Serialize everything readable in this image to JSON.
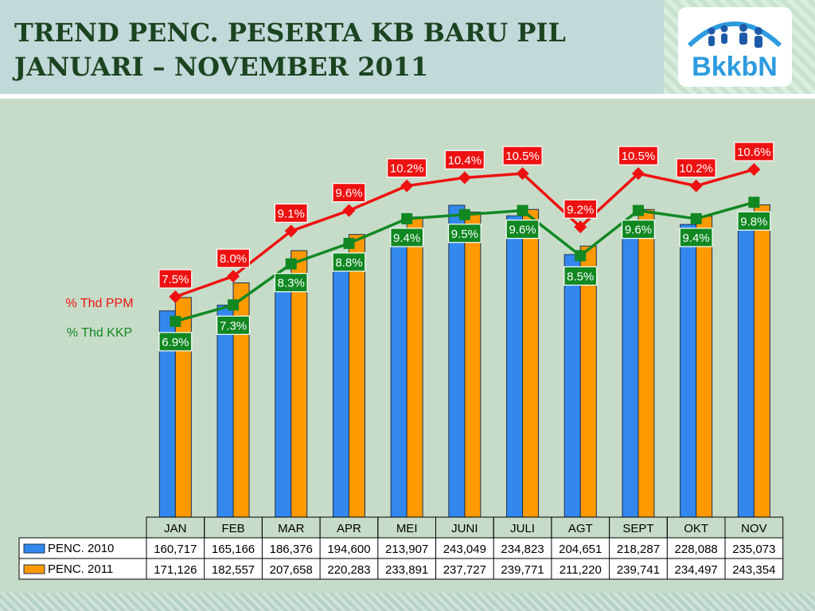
{
  "header": {
    "title_line1": "TREND PENC. PESERTA KB BARU PIL",
    "title_line2": "JANUARI – NOVEMBER 2011",
    "logo_text": "BkkbN"
  },
  "chart_data": {
    "type": "bar",
    "categories": [
      "JAN",
      "FEB",
      "MAR",
      "APR",
      "MEI",
      "JUNI",
      "JULI",
      "AGT",
      "SEPT",
      "OKT",
      "NOV"
    ],
    "series": [
      {
        "name": "PENC. 2010",
        "type": "bar",
        "color": "#3388ee",
        "values": [
          160717,
          165166,
          186376,
          194600,
          213907,
          243049,
          234823,
          204651,
          218287,
          228088,
          235073
        ],
        "labels": [
          "160,717",
          "165,166",
          "186,376",
          "194,600",
          "213,907",
          "243,049",
          "234,823",
          "204,651",
          "218,287",
          "228,088",
          "235,073"
        ]
      },
      {
        "name": "PENC. 2011",
        "type": "bar",
        "color": "#ff9900",
        "values": [
          171126,
          182557,
          207658,
          220283,
          233891,
          237727,
          239771,
          211220,
          239741,
          234497,
          243354
        ],
        "labels": [
          "171,126",
          "182,557",
          "207,658",
          "220,283",
          "233,891",
          "237,727",
          "239,771",
          "211,220",
          "239,741",
          "234,497",
          "243,354"
        ]
      }
    ],
    "lines": [
      {
        "name": "% Thd PPM",
        "color": "#ee1111",
        "marker": "diamond",
        "values": [
          7.5,
          8.0,
          9.1,
          9.6,
          10.2,
          10.4,
          10.5,
          9.2,
          10.5,
          10.2,
          10.6
        ],
        "labels": [
          "7.5%",
          "8.0%",
          "9.1%",
          "9.6%",
          "10.2%",
          "10.4%",
          "10.5%",
          "9.2%",
          "10.5%",
          "10.2%",
          "10.6%"
        ]
      },
      {
        "name": "% Thd KKP",
        "color": "#118822",
        "marker": "square",
        "values": [
          6.9,
          7.3,
          8.3,
          8.8,
          9.4,
          9.5,
          9.6,
          8.5,
          9.6,
          9.4,
          9.8
        ],
        "labels": [
          "6.9%",
          "7.3%",
          "8.3%",
          "8.8%",
          "9.4%",
          "9.5%",
          "9.6%",
          "8.5%",
          "9.6%",
          "9.4%",
          "9.8%"
        ]
      }
    ],
    "table_header": [
      "JAN",
      "FEB",
      "MAR",
      "APR",
      "MEI",
      "JUNI",
      "JULI",
      "AGT",
      "SEPT",
      "OKT",
      "NOV"
    ]
  }
}
